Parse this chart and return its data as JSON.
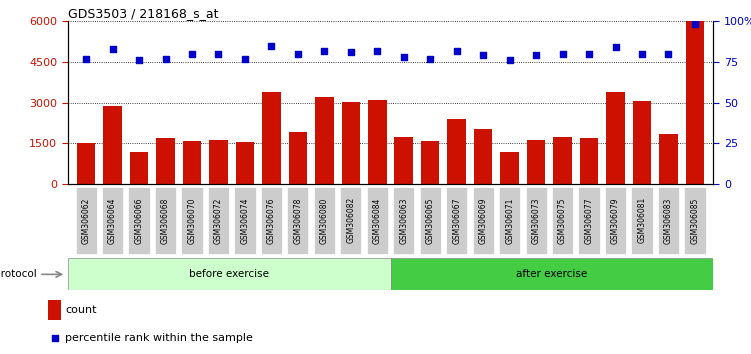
{
  "title": "GDS3503 / 218168_s_at",
  "categories": [
    "GSM306062",
    "GSM306064",
    "GSM306066",
    "GSM306068",
    "GSM306070",
    "GSM306072",
    "GSM306074",
    "GSM306076",
    "GSM306078",
    "GSM306080",
    "GSM306082",
    "GSM306084",
    "GSM306063",
    "GSM306065",
    "GSM306067",
    "GSM306069",
    "GSM306071",
    "GSM306073",
    "GSM306075",
    "GSM306077",
    "GSM306079",
    "GSM306081",
    "GSM306083",
    "GSM306085"
  ],
  "bar_values": [
    1520,
    2870,
    1200,
    1680,
    1580,
    1620,
    1560,
    3380,
    1920,
    3220,
    3020,
    3080,
    1720,
    1600,
    2380,
    2020,
    1180,
    1620,
    1720,
    1700,
    3380,
    3050,
    1850,
    6000
  ],
  "percentile_values": [
    77,
    83,
    76,
    77,
    80,
    80,
    77,
    85,
    80,
    82,
    81,
    82,
    78,
    77,
    82,
    79,
    76,
    79,
    80,
    80,
    84,
    80,
    80,
    98
  ],
  "bar_color": "#cc1100",
  "dot_color": "#0000cc",
  "before_count": 12,
  "after_count": 12,
  "before_label": "before exercise",
  "after_label": "after exercise",
  "protocol_label": "protocol",
  "before_color": "#ccffcc",
  "after_color": "#44cc44",
  "ylim_left": [
    0,
    6000
  ],
  "ylim_right": [
    0,
    100
  ],
  "yticks_left": [
    0,
    1500,
    3000,
    4500,
    6000
  ],
  "yticks_right": [
    0,
    25,
    50,
    75,
    100
  ],
  "ytick_labels_right": [
    "0",
    "25",
    "50",
    "75",
    "100%"
  ],
  "legend_count_label": "count",
  "legend_pct_label": "percentile rank within the sample",
  "grid_color": "#000000",
  "tick_label_bg": "#cccccc"
}
